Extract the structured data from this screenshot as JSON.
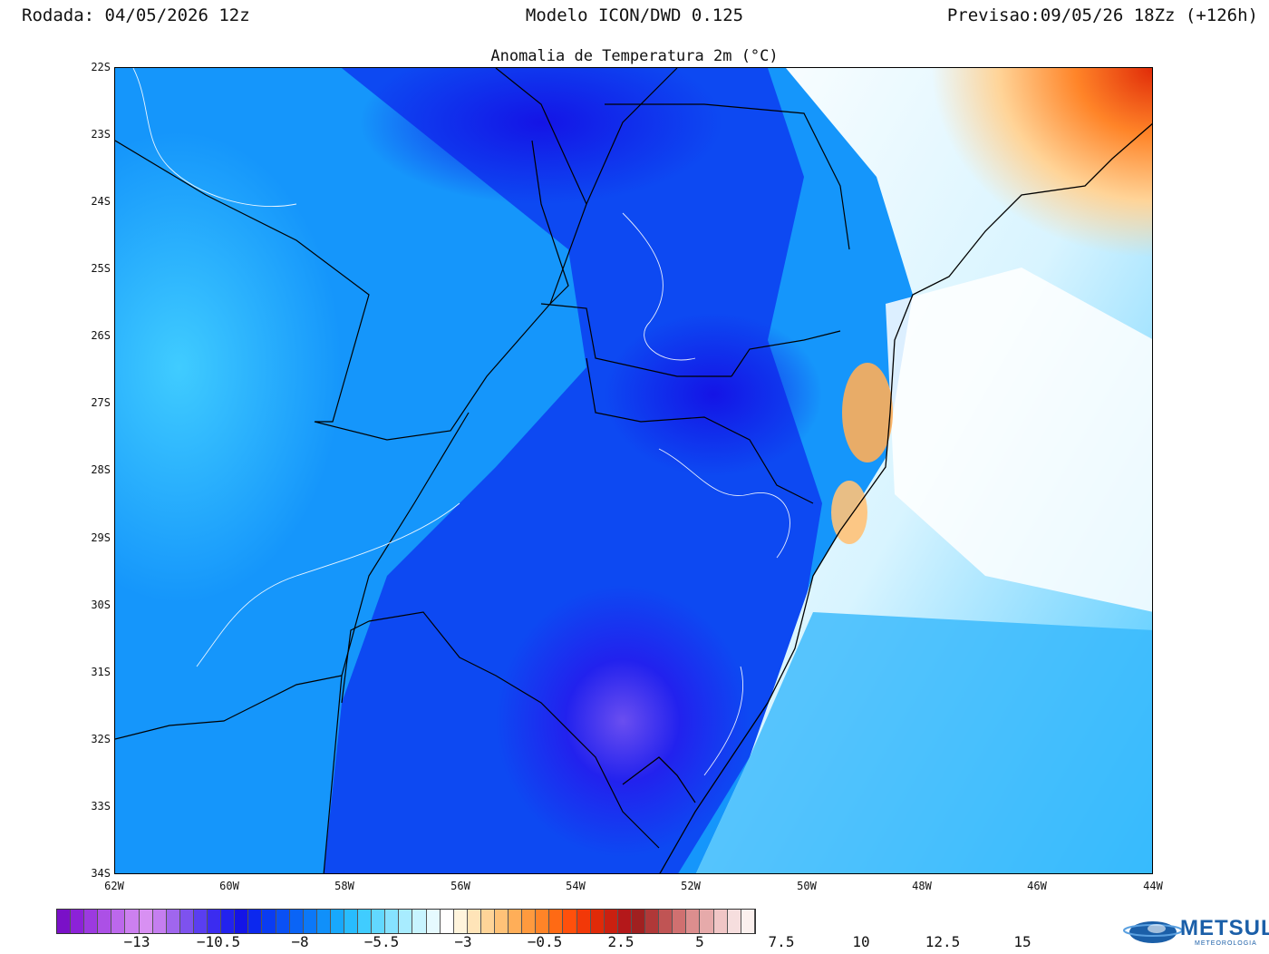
{
  "header": {
    "run": "Rodada: 04/05/2026 12z",
    "model": "Modelo ICON/DWD 0.125",
    "forecast": "Previsao:09/05/26 18Zz (+126h)"
  },
  "map": {
    "title": "Anomalia de Temperatura 2m (°C)",
    "lat_labels": [
      "22S",
      "23S",
      "24S",
      "25S",
      "26S",
      "27S",
      "28S",
      "29S",
      "30S",
      "31S",
      "32S",
      "33S",
      "34S"
    ],
    "lon_labels": [
      "62W",
      "60W",
      "58W",
      "56W",
      "54W",
      "52W",
      "50W",
      "48W",
      "46W",
      "44W"
    ]
  },
  "colorbar": {
    "labels": [
      "−13",
      "−10.5",
      "−8",
      "−5.5",
      "−3",
      "−0.5",
      "2.5",
      "5",
      "7.5",
      "10",
      "12.5",
      "15"
    ],
    "colors": [
      "#7a10c8",
      "#8c22d8",
      "#9c3ae0",
      "#ac50e6",
      "#bc68ec",
      "#cc80f0",
      "#d890f2",
      "#c57ef0",
      "#a066ee",
      "#7e52ee",
      "#5a3ef0",
      "#3b2cf0",
      "#2222ee",
      "#1414e6",
      "#0c28ee",
      "#0a3cf2",
      "#0a50f4",
      "#0a64f6",
      "#0c78f8",
      "#1090fa",
      "#18a8fc",
      "#28bcfe",
      "#40ccff",
      "#62d8ff",
      "#86e2ff",
      "#a8ecff",
      "#c8f4ff",
      "#e6faff",
      "#ffffff",
      "#fff4dc",
      "#ffe4b8",
      "#ffd498",
      "#ffc278",
      "#ffae58",
      "#ff9a3e",
      "#ff8428",
      "#ff6a14",
      "#ff500c",
      "#f23808",
      "#e02a08",
      "#ca2010",
      "#b4181a",
      "#a02020",
      "#b03838",
      "#c05454",
      "#d07070",
      "#dc8e8e",
      "#e6aaaa",
      "#f0c6c6",
      "#f6dede",
      "#fbf0ee"
    ]
  },
  "logo": {
    "name": "METSUL",
    "tagline": "METEOROLOGIA"
  }
}
